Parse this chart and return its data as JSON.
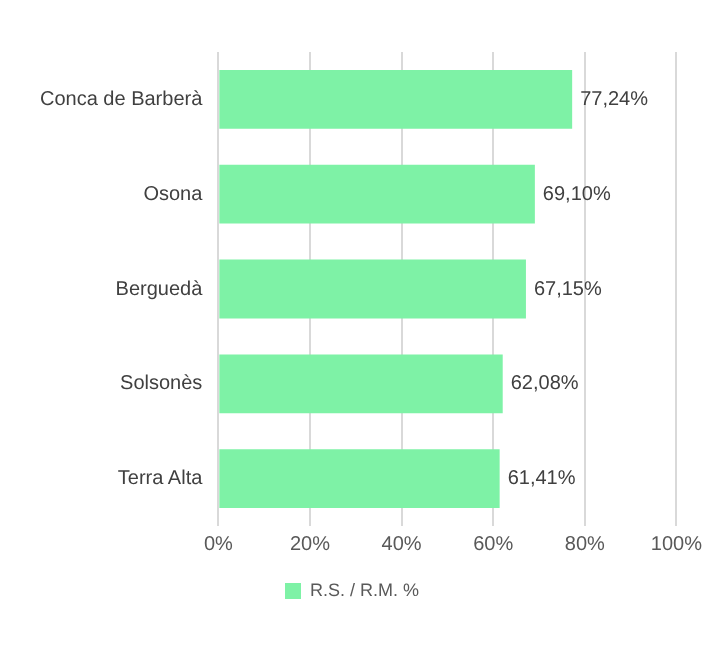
{
  "chart_data": {
    "type": "bar",
    "orientation": "horizontal",
    "categories": [
      "Conca de Barberà",
      "Osona",
      "Berguedà",
      "Solsonès",
      "Terra Alta"
    ],
    "series": [
      {
        "name": "R.S. / R.M. %",
        "color": "#7ef2a6",
        "values": [
          77.24,
          69.1,
          67.15,
          62.08,
          61.41
        ],
        "value_labels": [
          "77,24%",
          "69,10%",
          "67,15%",
          "62,08%",
          "61,41%"
        ]
      }
    ],
    "xlim": [
      0,
      100
    ],
    "xticks": [
      {
        "value": 0,
        "label": "0%"
      },
      {
        "value": 20,
        "label": "20%"
      },
      {
        "value": 40,
        "label": "40%"
      },
      {
        "value": 60,
        "label": "60%"
      },
      {
        "value": 80,
        "label": "80%"
      },
      {
        "value": 100,
        "label": "100%"
      }
    ],
    "grid": "x",
    "legend": "bottom"
  }
}
